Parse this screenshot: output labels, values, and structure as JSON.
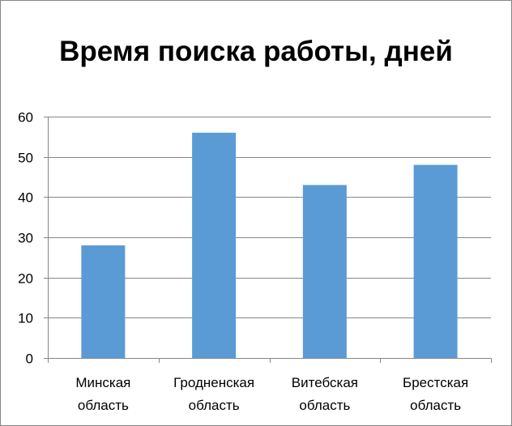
{
  "chart_data": {
    "type": "bar",
    "title": "Время поиска работы, дней",
    "categories": [
      [
        "Минская",
        "область"
      ],
      [
        "Гродненская",
        "область"
      ],
      [
        "Витебская",
        "область"
      ],
      [
        "Брестская",
        "область"
      ]
    ],
    "values": [
      28,
      56,
      43,
      48
    ],
    "ylim": [
      0,
      60
    ],
    "yticks": [
      "0",
      "10",
      "20",
      "30",
      "40",
      "50",
      "60"
    ],
    "bar_color": "#5B9BD5",
    "grid": true,
    "legend": false
  }
}
